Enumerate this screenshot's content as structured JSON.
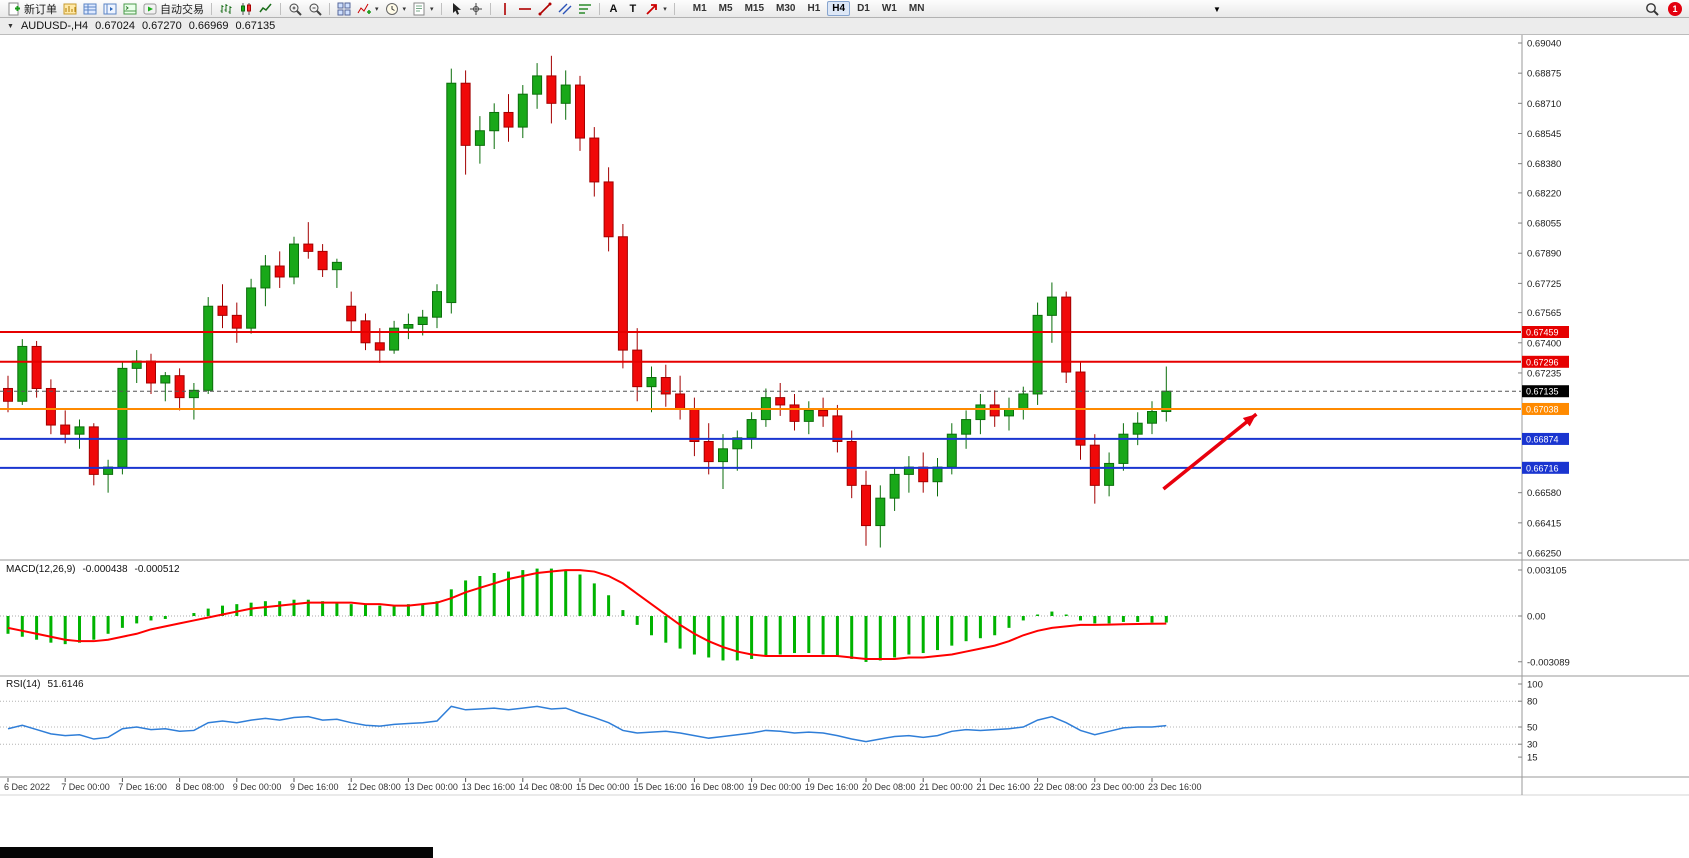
{
  "toolbar": {
    "items": [
      {
        "name": "new-order-button",
        "icon": "new-order-icon",
        "label": "新订单"
      },
      {
        "name": "market-watch-button",
        "icon": "market-watch-icon"
      },
      {
        "name": "data-window-button",
        "icon": "data-window-icon"
      },
      {
        "name": "navigator-button",
        "icon": "navigator-icon"
      },
      {
        "name": "terminal-button",
        "icon": "terminal-icon"
      },
      {
        "name": "autotrading-button",
        "icon": "autotrading-icon",
        "label": "自动交易"
      },
      {
        "sep": true
      },
      {
        "name": "bar-chart-button",
        "icon": "bar-chart-icon"
      },
      {
        "name": "candlestick-chart-button",
        "icon": "candlestick-icon"
      },
      {
        "name": "line-chart-button",
        "icon": "line-chart-icon"
      },
      {
        "sep": true
      },
      {
        "name": "zoom-in-button",
        "icon": "zoom-in-icon"
      },
      {
        "name": "zoom-out-button",
        "icon": "zoom-out-icon"
      },
      {
        "sep": true
      },
      {
        "name": "tile-windows-button",
        "icon": "tile-windows-icon"
      },
      {
        "name": "indicators-button",
        "icon": "indicators-icon",
        "caret": true
      },
      {
        "name": "periods-button",
        "icon": "periods-icon",
        "caret": true
      },
      {
        "name": "templates-button",
        "icon": "templates-icon",
        "caret": true
      },
      {
        "sep": true
      },
      {
        "name": "cursor-button",
        "icon": "cursor-icon"
      },
      {
        "name": "crosshair-button",
        "icon": "crosshair-icon"
      },
      {
        "sep": true
      },
      {
        "name": "vertical-line-button",
        "icon": "vertical-line-icon"
      },
      {
        "name": "horizontal-line-button",
        "icon": "horizontal-line-icon"
      },
      {
        "name": "trendline-button",
        "icon": "trendline-icon"
      },
      {
        "name": "channel-button",
        "icon": "channel-icon"
      },
      {
        "name": "fibonacci-button",
        "icon": "fibonacci-icon"
      },
      {
        "sep": true
      },
      {
        "name": "text-tool-button",
        "label": "A"
      },
      {
        "name": "label-tool-button",
        "label": "T"
      },
      {
        "name": "arrows-tool-button",
        "icon": "arrow-tool-icon",
        "caret": true
      },
      {
        "sep": true
      }
    ],
    "timeframes": [
      "M1",
      "M5",
      "M15",
      "M30",
      "H1",
      "H4",
      "D1",
      "W1",
      "MN"
    ],
    "active_timeframe": "H4",
    "notification_count": "1"
  },
  "chart_header": {
    "symbol_period": "AUDUSD-,H4",
    "open": "0.67024",
    "high": "0.67270",
    "low": "0.66969",
    "close": "0.67135"
  },
  "macd_header": {
    "label": "MACD(12,26,9)",
    "main": "-0.000438",
    "signal": "-0.000512"
  },
  "rsi_header": {
    "label": "RSI(14)",
    "value": "51.6146"
  },
  "chart_data": {
    "type": "candlestick",
    "symbol": "AUDUSD",
    "period": "H4",
    "colors": {
      "up": "#19a819",
      "up_border": "#0b6e0b",
      "down": "#f00909",
      "down_border": "#a30000",
      "macd_hist": "#00b300",
      "macd_signal": "#ff0000",
      "rsi_line": "#2f7ed8"
    },
    "price_axis": {
      "max": 0.6904,
      "min": 0.6625,
      "labels": [
        "0.69040",
        "0.68875",
        "0.68710",
        "0.68545",
        "0.68380",
        "0.68220",
        "0.68055",
        "0.67890",
        "0.67725",
        "0.67565",
        "0.67400",
        "0.67235",
        "0.66580",
        "0.66415",
        "0.66250"
      ]
    },
    "lines": [
      {
        "price": 0.67459,
        "label": "0.67459",
        "color": "#e60000",
        "width": 2,
        "kind": "resistance"
      },
      {
        "price": 0.67296,
        "label": "0.67296",
        "color": "#e60000",
        "width": 2,
        "kind": "resistance"
      },
      {
        "price": 0.67135,
        "label": "0.67135",
        "color": "#555555",
        "box": "#000000",
        "width": 1,
        "dashed": true,
        "kind": "current-price"
      },
      {
        "price": 0.67038,
        "label": "0.67038",
        "color": "#ff8a00",
        "width": 2,
        "kind": "pivot"
      },
      {
        "price": 0.66874,
        "label": "0.66874",
        "color": "#1a35d0",
        "width": 2,
        "kind": "support"
      },
      {
        "price": 0.66716,
        "label": "0.66716",
        "color": "#1a35d0",
        "width": 2,
        "kind": "support"
      }
    ],
    "candles": [
      [
        0.6715,
        0.6722,
        0.6702,
        0.6708
      ],
      [
        0.6708,
        0.6742,
        0.6706,
        0.6738
      ],
      [
        0.6738,
        0.6741,
        0.671,
        0.6715
      ],
      [
        0.6715,
        0.672,
        0.669,
        0.6695
      ],
      [
        0.6695,
        0.6703,
        0.6685,
        0.669
      ],
      [
        0.669,
        0.6698,
        0.6682,
        0.6694
      ],
      [
        0.6694,
        0.6696,
        0.6662,
        0.6668
      ],
      [
        0.6668,
        0.6676,
        0.6658,
        0.6672
      ],
      [
        0.6672,
        0.673,
        0.6668,
        0.6726
      ],
      [
        0.6726,
        0.6736,
        0.6718,
        0.673
      ],
      [
        0.673,
        0.6734,
        0.6712,
        0.6718
      ],
      [
        0.6718,
        0.6724,
        0.6708,
        0.6722
      ],
      [
        0.6722,
        0.6726,
        0.6703,
        0.671
      ],
      [
        0.671,
        0.6718,
        0.6698,
        0.6714
      ],
      [
        0.6714,
        0.6765,
        0.6712,
        0.676
      ],
      [
        0.676,
        0.6772,
        0.6748,
        0.6755
      ],
      [
        0.6755,
        0.6762,
        0.674,
        0.6748
      ],
      [
        0.6748,
        0.6775,
        0.6745,
        0.677
      ],
      [
        0.677,
        0.6788,
        0.676,
        0.6782
      ],
      [
        0.6782,
        0.679,
        0.677,
        0.6776
      ],
      [
        0.6776,
        0.6798,
        0.6772,
        0.6794
      ],
      [
        0.6794,
        0.6806,
        0.6786,
        0.679
      ],
      [
        0.679,
        0.6794,
        0.6776,
        0.678
      ],
      [
        0.678,
        0.6786,
        0.677,
        0.6784
      ],
      [
        0.676,
        0.6768,
        0.6746,
        0.6752
      ],
      [
        0.6752,
        0.6756,
        0.6736,
        0.674
      ],
      [
        0.674,
        0.6748,
        0.6729,
        0.6736
      ],
      [
        0.6736,
        0.6752,
        0.6734,
        0.6748
      ],
      [
        0.6748,
        0.6756,
        0.6742,
        0.675
      ],
      [
        0.675,
        0.6758,
        0.6744,
        0.6754
      ],
      [
        0.6754,
        0.6772,
        0.6748,
        0.6768
      ],
      [
        0.6762,
        0.689,
        0.6756,
        0.6882
      ],
      [
        0.6882,
        0.6889,
        0.6832,
        0.6848
      ],
      [
        0.6848,
        0.6864,
        0.6838,
        0.6856
      ],
      [
        0.6856,
        0.6871,
        0.6846,
        0.6866
      ],
      [
        0.6866,
        0.6876,
        0.685,
        0.6858
      ],
      [
        0.6858,
        0.6881,
        0.6852,
        0.6876
      ],
      [
        0.6876,
        0.6893,
        0.6868,
        0.6886
      ],
      [
        0.6886,
        0.6897,
        0.686,
        0.6871
      ],
      [
        0.6871,
        0.6889,
        0.6862,
        0.6881
      ],
      [
        0.6881,
        0.6886,
        0.6845,
        0.6852
      ],
      [
        0.6852,
        0.6858,
        0.682,
        0.6828
      ],
      [
        0.6828,
        0.6836,
        0.679,
        0.6798
      ],
      [
        0.6798,
        0.6805,
        0.6726,
        0.6736
      ],
      [
        0.6736,
        0.6748,
        0.6708,
        0.6716
      ],
      [
        0.6716,
        0.6727,
        0.6702,
        0.6721
      ],
      [
        0.6721,
        0.6728,
        0.6705,
        0.6712
      ],
      [
        0.6712,
        0.6722,
        0.6698,
        0.6704
      ],
      [
        0.6704,
        0.671,
        0.6678,
        0.6686
      ],
      [
        0.6686,
        0.6696,
        0.6668,
        0.6675
      ],
      [
        0.6675,
        0.669,
        0.666,
        0.6682
      ],
      [
        0.6682,
        0.6692,
        0.667,
        0.6688
      ],
      [
        0.6688,
        0.6702,
        0.6682,
        0.6698
      ],
      [
        0.6698,
        0.6715,
        0.6694,
        0.671
      ],
      [
        0.671,
        0.6718,
        0.67,
        0.6706
      ],
      [
        0.6706,
        0.6712,
        0.6692,
        0.6697
      ],
      [
        0.6697,
        0.6708,
        0.669,
        0.6703
      ],
      [
        0.6703,
        0.671,
        0.6694,
        0.67
      ],
      [
        0.67,
        0.6706,
        0.668,
        0.6686
      ],
      [
        0.6686,
        0.6692,
        0.6655,
        0.6662
      ],
      [
        0.6662,
        0.667,
        0.6629,
        0.664
      ],
      [
        0.664,
        0.6662,
        0.6628,
        0.6655
      ],
      [
        0.6655,
        0.6672,
        0.6648,
        0.6668
      ],
      [
        0.6668,
        0.6678,
        0.6658,
        0.6672
      ],
      [
        0.6672,
        0.668,
        0.6658,
        0.6664
      ],
      [
        0.6664,
        0.6677,
        0.6656,
        0.6672
      ],
      [
        0.6672,
        0.6696,
        0.6668,
        0.669
      ],
      [
        0.669,
        0.6703,
        0.6682,
        0.6698
      ],
      [
        0.6698,
        0.6712,
        0.669,
        0.6706
      ],
      [
        0.6706,
        0.6714,
        0.6694,
        0.67
      ],
      [
        0.67,
        0.671,
        0.6692,
        0.6704
      ],
      [
        0.6704,
        0.6716,
        0.6698,
        0.6712
      ],
      [
        0.6712,
        0.6762,
        0.6706,
        0.6755
      ],
      [
        0.6755,
        0.6773,
        0.674,
        0.6765
      ],
      [
        0.6765,
        0.6768,
        0.6718,
        0.6724
      ],
      [
        0.6724,
        0.673,
        0.6676,
        0.6684
      ],
      [
        0.6684,
        0.669,
        0.6652,
        0.6662
      ],
      [
        0.6662,
        0.668,
        0.6656,
        0.6674
      ],
      [
        0.6674,
        0.6696,
        0.667,
        0.669
      ],
      [
        0.669,
        0.6702,
        0.6684,
        0.6696
      ],
      [
        0.6696,
        0.6708,
        0.669,
        0.67024
      ],
      [
        0.67024,
        0.6727,
        0.66969,
        0.67135
      ]
    ],
    "time_axis": {
      "labels": [
        {
          "bar": 0,
          "text": "6 Dec 2022"
        },
        {
          "bar": 4,
          "text": "7 Dec 00:00"
        },
        {
          "bar": 8,
          "text": "7 Dec 16:00"
        },
        {
          "bar": 12,
          "text": "8 Dec 08:00"
        },
        {
          "bar": 16,
          "text": "9 Dec 00:00"
        },
        {
          "bar": 20,
          "text": "9 Dec 16:00"
        },
        {
          "bar": 24,
          "text": "12 Dec 08:00"
        },
        {
          "bar": 28,
          "text": "13 Dec 00:00"
        },
        {
          "bar": 32,
          "text": "13 Dec 16:00"
        },
        {
          "bar": 36,
          "text": "14 Dec 08:00"
        },
        {
          "bar": 40,
          "text": "15 Dec 00:00"
        },
        {
          "bar": 44,
          "text": "15 Dec 16:00"
        },
        {
          "bar": 48,
          "text": "16 Dec 08:00"
        },
        {
          "bar": 52,
          "text": "19 Dec 00:00"
        },
        {
          "bar": 56,
          "text": "19 Dec 16:00"
        },
        {
          "bar": 60,
          "text": "20 Dec 08:00"
        },
        {
          "bar": 64,
          "text": "21 Dec 00:00"
        },
        {
          "bar": 68,
          "text": "21 Dec 16:00"
        },
        {
          "bar": 72,
          "text": "22 Dec 08:00"
        },
        {
          "bar": 76,
          "text": "23 Dec 00:00"
        },
        {
          "bar": 80,
          "text": "23 Dec 16:00"
        }
      ]
    },
    "macd": {
      "histogram": [
        -0.0012,
        -0.0014,
        -0.0016,
        -0.0018,
        -0.0019,
        -0.0018,
        -0.0016,
        -0.0012,
        -0.0008,
        -0.0005,
        -0.0003,
        -0.0002,
        0.0,
        0.0002,
        0.0005,
        0.0007,
        0.0008,
        0.0009,
        0.001,
        0.001,
        0.0011,
        0.0011,
        0.001,
        0.0009,
        0.0008,
        0.0008,
        0.0007,
        0.0007,
        0.0008,
        0.0008,
        0.001,
        0.0018,
        0.0024,
        0.0027,
        0.0029,
        0.003,
        0.0031,
        0.0032,
        0.0032,
        0.0031,
        0.0028,
        0.0022,
        0.0014,
        0.0004,
        -0.0006,
        -0.0013,
        -0.0018,
        -0.0022,
        -0.0026,
        -0.0028,
        -0.003,
        -0.003,
        -0.0029,
        -0.0027,
        -0.0026,
        -0.0025,
        -0.0025,
        -0.0026,
        -0.0027,
        -0.0029,
        -0.0031,
        -0.003,
        -0.0028,
        -0.0026,
        -0.0025,
        -0.0023,
        -0.002,
        -0.0017,
        -0.0015,
        -0.0013,
        -0.0008,
        -0.0003,
        0.0001,
        0.0003,
        0.0001,
        -0.0003,
        -0.0005,
        -0.0005,
        -0.0004,
        -0.0004,
        -0.00045,
        -0.000438
      ],
      "signal": [
        -0.0008,
        -0.001,
        -0.0012,
        -0.0014,
        -0.0016,
        -0.0017,
        -0.0017,
        -0.0016,
        -0.0014,
        -0.0012,
        -0.0009,
        -0.0007,
        -0.0005,
        -0.0003,
        -0.0001,
        0.0001,
        0.0003,
        0.0005,
        0.0006,
        0.0007,
        0.0008,
        0.0009,
        0.0009,
        0.0009,
        0.0009,
        0.0008,
        0.0008,
        0.0007,
        0.0007,
        0.0008,
        0.0009,
        0.0012,
        0.0016,
        0.0019,
        0.0022,
        0.0025,
        0.0027,
        0.0029,
        0.003,
        0.0031,
        0.0031,
        0.003,
        0.0027,
        0.0022,
        0.0015,
        0.0008,
        0.0001,
        -0.0006,
        -0.0012,
        -0.0017,
        -0.0021,
        -0.0024,
        -0.0026,
        -0.0027,
        -0.0027,
        -0.0027,
        -0.0027,
        -0.0027,
        -0.0027,
        -0.0028,
        -0.0029,
        -0.0029,
        -0.0029,
        -0.0028,
        -0.0028,
        -0.0027,
        -0.0026,
        -0.0024,
        -0.0022,
        -0.002,
        -0.0017,
        -0.0013,
        -0.001,
        -0.0008,
        -0.0007,
        -0.0006,
        -0.0006,
        -0.00058,
        -0.00056,
        -0.00054,
        -0.00052,
        -0.000512
      ],
      "scale_labels": [
        {
          "text": "0.003105",
          "value": 0.003105
        },
        {
          "text": "0.00",
          "value": 0
        },
        {
          "text": "-0.003089",
          "value": -0.003089
        }
      ]
    },
    "rsi": {
      "values": [
        48,
        52,
        47,
        42,
        40,
        41,
        36,
        38,
        48,
        50,
        47,
        48,
        45,
        46,
        55,
        57,
        55,
        58,
        60,
        58,
        61,
        62,
        58,
        59,
        55,
        52,
        51,
        53,
        54,
        55,
        57,
        74,
        70,
        71,
        72,
        70,
        72,
        74,
        71,
        72,
        66,
        61,
        55,
        46,
        43,
        44,
        45,
        43,
        40,
        37,
        39,
        41,
        43,
        46,
        45,
        43,
        44,
        43,
        40,
        36,
        33,
        36,
        39,
        40,
        38,
        40,
        45,
        47,
        46,
        47,
        48,
        50,
        58,
        62,
        55,
        46,
        41,
        45,
        49,
        50,
        50,
        51.6
      ],
      "levels": [
        80,
        50,
        30
      ],
      "scale_labels": [
        {
          "text": "100",
          "value": 100
        },
        {
          "text": "80",
          "value": 80
        },
        {
          "text": "50",
          "value": 50
        },
        {
          "text": "30",
          "value": 30
        },
        {
          "text": "15",
          "value": 15
        }
      ]
    },
    "annotations": [
      {
        "type": "arrow",
        "color": "#e8000d",
        "tail_bar": 80.8,
        "tail_price": 0.666,
        "head_bar": 87.3,
        "head_price": 0.6701
      }
    ]
  }
}
